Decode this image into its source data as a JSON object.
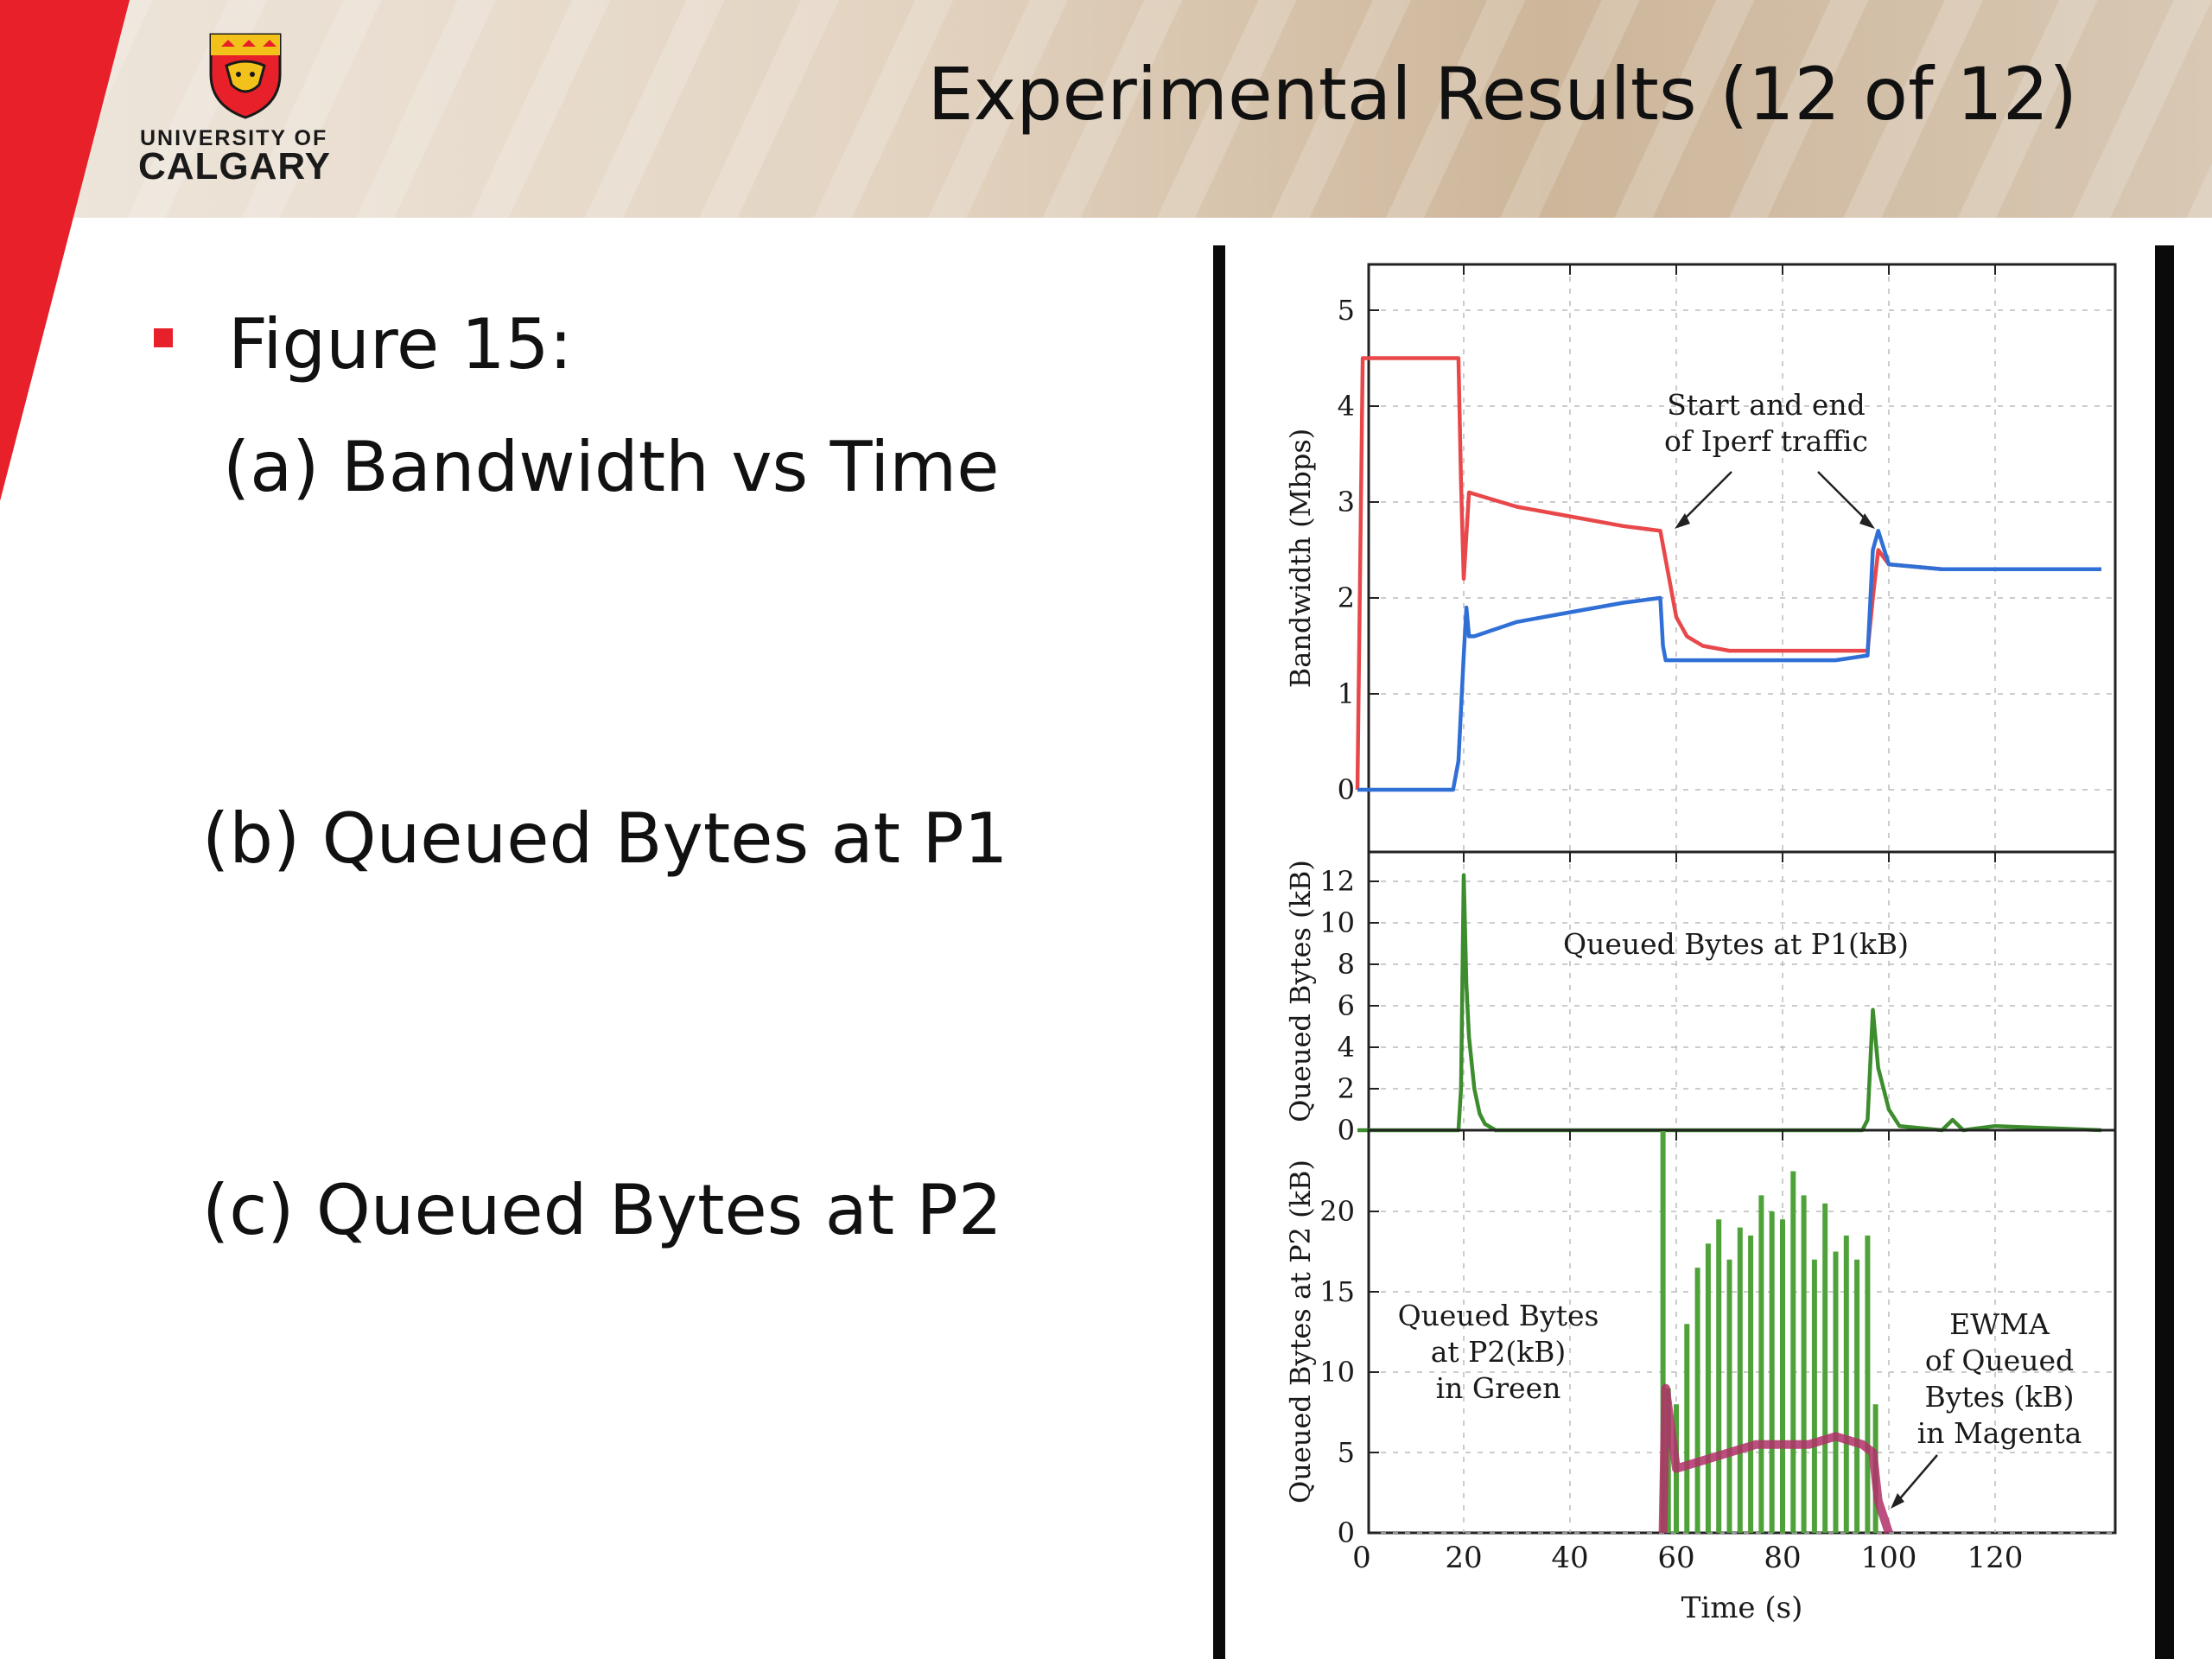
{
  "header": {
    "title": "Experimental Results (12 of 12)",
    "logo_line1": "UNIVERSITY OF",
    "logo_line2": "CALGARY",
    "brand_red": "#e8202a"
  },
  "bullets": {
    "main": "Figure 15:",
    "a": "(a)  Bandwidth vs Time",
    "b": "(b) Queued Bytes at P1",
    "c": "(c) Queued Bytes at P2"
  },
  "chart_data": [
    {
      "type": "line",
      "panel": "top",
      "ylabel": "Bandwidth (Mbps)",
      "xlim": [
        0,
        140
      ],
      "ylim": [
        0,
        5.5
      ],
      "yticks": [
        "0",
        "1",
        "2",
        "3",
        "4",
        "5"
      ],
      "annotation": [
        "Start and end",
        "of Iperf traffic"
      ],
      "series": [
        {
          "color": "#e8484a",
          "x": [
            0,
            1,
            3,
            10,
            19,
            19.5,
            20,
            21,
            24,
            30,
            40,
            50,
            57,
            58,
            60,
            62,
            65,
            70,
            80,
            90,
            96,
            97,
            98,
            100,
            110,
            120,
            140
          ],
          "y": [
            0,
            4.5,
            4.5,
            4.5,
            4.5,
            3.2,
            2.2,
            3.1,
            3.05,
            2.95,
            2.85,
            2.75,
            2.7,
            2.4,
            1.8,
            1.6,
            1.5,
            1.45,
            1.45,
            1.45,
            1.45,
            2.0,
            2.5,
            2.35,
            2.3,
            2.3,
            2.3
          ]
        },
        {
          "color": "#2f6fd6",
          "x": [
            0,
            10,
            18,
            19,
            20,
            20.5,
            21,
            22,
            30,
            40,
            50,
            57,
            57.5,
            58,
            60,
            70,
            80,
            90,
            96,
            97,
            98,
            100,
            110,
            120,
            140
          ],
          "y": [
            0,
            0,
            0,
            0.3,
            1.4,
            1.9,
            1.6,
            1.6,
            1.75,
            1.85,
            1.95,
            2.0,
            1.5,
            1.35,
            1.35,
            1.35,
            1.35,
            1.35,
            1.4,
            2.5,
            2.7,
            2.35,
            2.3,
            2.3,
            2.3
          ]
        }
      ]
    },
    {
      "type": "line",
      "panel": "middle",
      "ylabel": "Queued Bytes (kB)",
      "xlim": [
        0,
        140
      ],
      "ylim": [
        0,
        13
      ],
      "yticks": [
        "0",
        "2",
        "4",
        "6",
        "8",
        "10",
        "12"
      ],
      "annotation": "Queued Bytes at P1(kB)",
      "series": [
        {
          "color": "#3d8c2e",
          "x": [
            0,
            18,
            19,
            19.5,
            20,
            20.5,
            21,
            22,
            23,
            24,
            26,
            30,
            95,
            96,
            97,
            98,
            99,
            100,
            102,
            110,
            112,
            114,
            120,
            140
          ],
          "y": [
            0,
            0,
            0,
            2,
            12.3,
            7,
            4.5,
            2,
            0.8,
            0.3,
            0,
            0,
            0,
            0.5,
            5.8,
            3,
            2,
            1,
            0.2,
            0,
            0.5,
            0,
            0.2,
            0
          ]
        }
      ]
    },
    {
      "type": "bar",
      "panel": "bottom",
      "ylabel": "Queued Bytes at P2 (kB)",
      "xlabel": "Time (s)",
      "xlim": [
        0,
        140
      ],
      "ylim": [
        0,
        25
      ],
      "xticks": [
        "0",
        "20",
        "40",
        "60",
        "80",
        "100",
        "120"
      ],
      "yticks": [
        "0",
        "5",
        "10",
        "15",
        "20"
      ],
      "annotation_left": [
        "Queued Bytes",
        "at P2(kB)",
        "in Green"
      ],
      "annotation_right": [
        "EWMA",
        "of Queued",
        "Bytes (kB)",
        "in Magenta"
      ],
      "series": [
        {
          "name": "Queued Bytes at P2(kB)",
          "color": "#4fa23a",
          "x": [
            57.5,
            58.5,
            60,
            62,
            64,
            66,
            68,
            70,
            72,
            74,
            76,
            78,
            80,
            82,
            84,
            86,
            88,
            90,
            92,
            94,
            96,
            97.5
          ],
          "y": [
            25,
            9,
            8,
            13,
            16.5,
            18,
            19.5,
            17,
            19,
            18.5,
            21,
            20,
            19.5,
            22.5,
            21,
            17,
            20.5,
            17.5,
            18.5,
            17,
            18.5,
            8
          ]
        },
        {
          "name": "EWMA of Queued Bytes (kB)",
          "color": "#b0306a",
          "x": [
            57.5,
            58,
            60,
            65,
            70,
            75,
            80,
            85,
            90,
            95,
            97,
            98,
            99,
            100
          ],
          "y": [
            0,
            9,
            4,
            4.5,
            5,
            5.5,
            5.5,
            5.5,
            6,
            5.5,
            5,
            2,
            1,
            0
          ]
        }
      ]
    }
  ]
}
